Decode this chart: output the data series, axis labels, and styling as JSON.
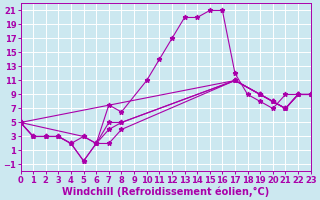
{
  "xlabel": "Windchill (Refroidissement éolien,°C)",
  "xlim": [
    0,
    23
  ],
  "ylim": [
    -2,
    22
  ],
  "xticks": [
    0,
    1,
    2,
    3,
    4,
    5,
    6,
    7,
    8,
    9,
    10,
    11,
    12,
    13,
    14,
    15,
    16,
    17,
    18,
    19,
    20,
    21,
    22,
    23
  ],
  "yticks": [
    -1,
    1,
    3,
    5,
    7,
    9,
    11,
    13,
    15,
    17,
    19,
    21
  ],
  "background_color": "#cce8f0",
  "line_color": "#aa00aa",
  "grid_color": "#ffffff",
  "font_size_ticks": 6.0,
  "font_size_xlabel": 7.0,
  "curves": [
    {
      "x": [
        0,
        1,
        2,
        3,
        4,
        5,
        6,
        7,
        8,
        10,
        11,
        12,
        13,
        14,
        15,
        16,
        17,
        18,
        19,
        20,
        21,
        22,
        23
      ],
      "y": [
        5,
        3,
        3,
        3,
        2,
        -0.5,
        2,
        7.5,
        6.5,
        11,
        14,
        17,
        20,
        20,
        21,
        21,
        12,
        9,
        8,
        7,
        9,
        9,
        9
      ]
    },
    {
      "x": [
        0,
        17,
        19,
        20,
        21,
        22,
        23
      ],
      "y": [
        5,
        11,
        9,
        8,
        7,
        9,
        9
      ]
    },
    {
      "x": [
        0,
        5,
        6,
        7,
        8,
        17,
        19,
        20,
        21,
        22,
        23
      ],
      "y": [
        5,
        3,
        2,
        5,
        5,
        11,
        9,
        8,
        7,
        9,
        9
      ]
    },
    {
      "x": [
        0,
        1,
        2,
        3,
        4,
        5,
        6,
        7,
        8,
        17,
        19,
        20,
        21,
        22,
        23
      ],
      "y": [
        5,
        3,
        3,
        3,
        2,
        3,
        2,
        4,
        5,
        11,
        9,
        8,
        7,
        9,
        9
      ]
    },
    {
      "x": [
        0,
        1,
        2,
        3,
        4,
        5,
        6,
        7,
        8,
        17,
        19,
        20,
        21,
        22,
        23
      ],
      "y": [
        5,
        3,
        3,
        3,
        2,
        -0.5,
        2,
        2,
        4,
        11,
        9,
        8,
        7,
        9,
        9
      ]
    }
  ]
}
